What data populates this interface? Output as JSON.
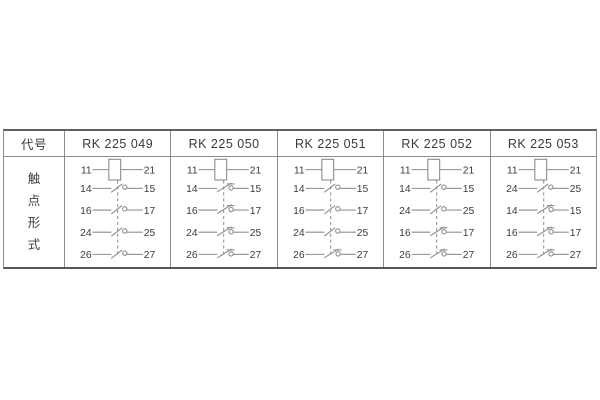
{
  "table": {
    "header_label": "代号",
    "row_label": "触点形式",
    "columns": [
      {
        "code": "RK 225 049",
        "rows": [
          {
            "type": "coil",
            "left": "11",
            "right": "21"
          },
          {
            "type": "no",
            "left": "14",
            "right": "15"
          },
          {
            "type": "no",
            "left": "16",
            "right": "17"
          },
          {
            "type": "no",
            "left": "24",
            "right": "25"
          },
          {
            "type": "no",
            "left": "26",
            "right": "27"
          }
        ]
      },
      {
        "code": "RK 225 050",
        "rows": [
          {
            "type": "coil",
            "left": "11",
            "right": "21"
          },
          {
            "type": "nc",
            "left": "14",
            "right": "15"
          },
          {
            "type": "nc",
            "left": "16",
            "right": "17"
          },
          {
            "type": "nc",
            "left": "24",
            "right": "25"
          },
          {
            "type": "nc",
            "left": "26",
            "right": "27"
          }
        ]
      },
      {
        "code": "RK 225 051",
        "rows": [
          {
            "type": "coil",
            "left": "11",
            "right": "21"
          },
          {
            "type": "no",
            "left": "14",
            "right": "15"
          },
          {
            "type": "no",
            "left": "16",
            "right": "17"
          },
          {
            "type": "no",
            "left": "24",
            "right": "25"
          },
          {
            "type": "nc",
            "left": "26",
            "right": "27"
          }
        ]
      },
      {
        "code": "RK 225 052",
        "rows": [
          {
            "type": "coil",
            "left": "11",
            "right": "21"
          },
          {
            "type": "no",
            "left": "14",
            "right": "15"
          },
          {
            "type": "no",
            "left": "24",
            "right": "25"
          },
          {
            "type": "nc",
            "left": "16",
            "right": "17"
          },
          {
            "type": "nc",
            "left": "26",
            "right": "27"
          }
        ]
      },
      {
        "code": "RK 225 053",
        "rows": [
          {
            "type": "coil",
            "left": "11",
            "right": "21"
          },
          {
            "type": "no",
            "left": "24",
            "right": "25"
          },
          {
            "type": "nc",
            "left": "14",
            "right": "15"
          },
          {
            "type": "nc",
            "left": "16",
            "right": "17"
          },
          {
            "type": "nc",
            "left": "26",
            "right": "27"
          }
        ]
      }
    ],
    "symbol_legend": {
      "coil": "relay-coil",
      "no": "make-contact-normally-open",
      "nc": "break-contact-normally-closed"
    },
    "colors": {
      "line": "#8c8c8c",
      "text": "#3c3c3c",
      "border_outer": "#5f5f5f",
      "border_inner": "#8c8c8c",
      "background": "#ffffff"
    }
  }
}
